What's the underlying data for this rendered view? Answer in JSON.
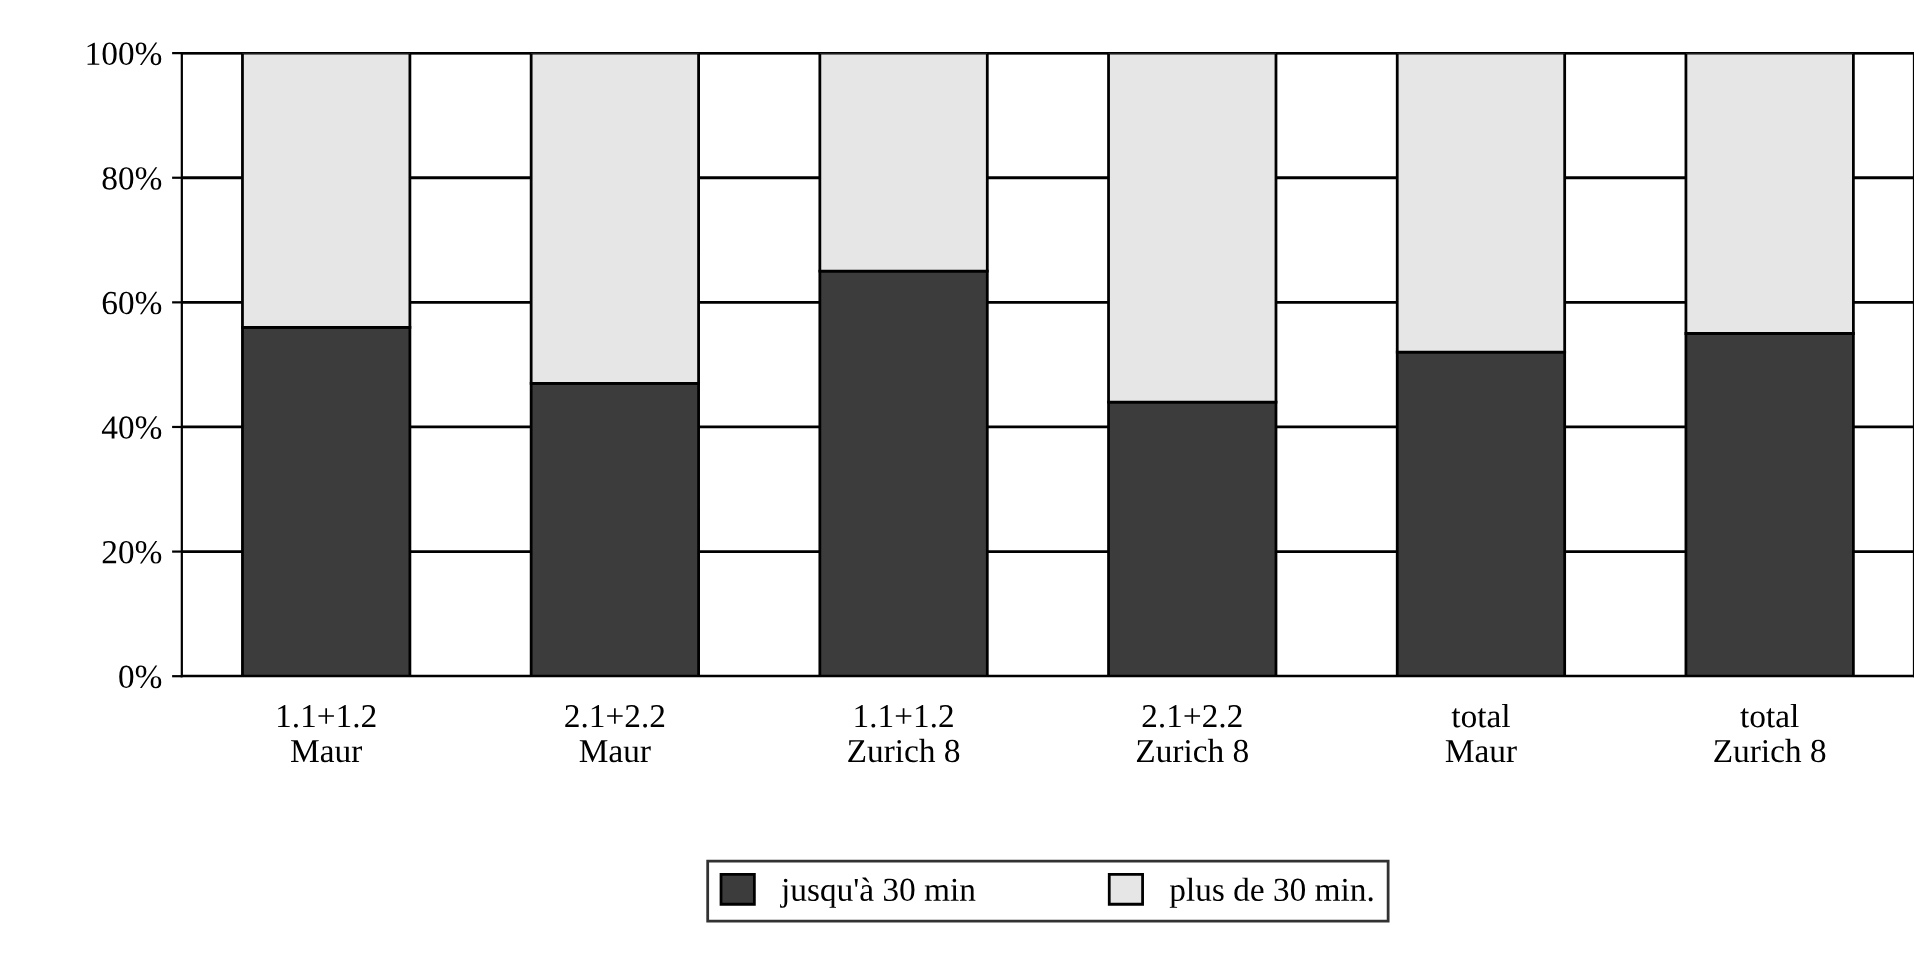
{
  "chart_data": {
    "type": "bar",
    "stacked": true,
    "categories": [
      "1.1+1.2\nMaur",
      "2.1+2.2\nMaur",
      "1.1+1.2\nZurich 8",
      "2.1+2.2\nZurich 8",
      "total\nMaur",
      "total\nZurich 8"
    ],
    "series": [
      {
        "name": "jusqu'à 30 min",
        "color": "#3c3c3c",
        "values": [
          56,
          47,
          65,
          44,
          52,
          55
        ]
      },
      {
        "name": "plus de 30 min.",
        "color": "#e6e6e6",
        "values": [
          44,
          53,
          35,
          56,
          48,
          45
        ]
      }
    ],
    "ylim": [
      0,
      100
    ],
    "yticks": [
      {
        "value": 0,
        "label": "0%"
      },
      {
        "value": 20,
        "label": "20%"
      },
      {
        "value": 40,
        "label": "40%"
      },
      {
        "value": 60,
        "label": "60%"
      },
      {
        "value": 80,
        "label": "80%"
      },
      {
        "value": 100,
        "label": "100%"
      }
    ],
    "grid": "y",
    "legend": "bottom"
  }
}
